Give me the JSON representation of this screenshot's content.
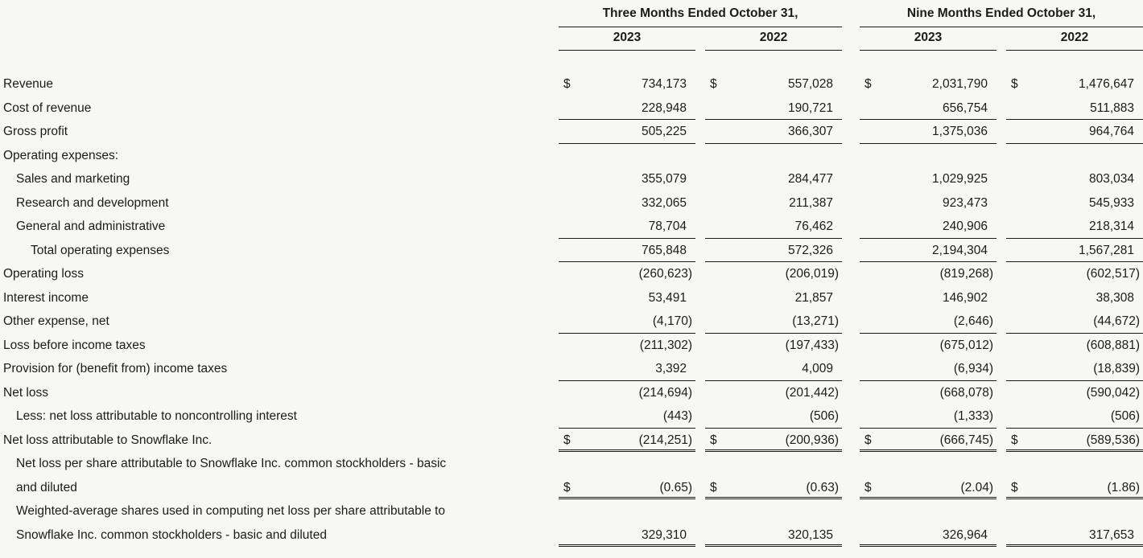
{
  "page": {
    "background_color": "#f7f7f4",
    "text_color": "#1b1b19"
  },
  "table": {
    "currency_symbol": "$",
    "col_groups": [
      {
        "label": "Three Months Ended October 31,",
        "years": [
          "2023",
          "2022"
        ]
      },
      {
        "label": "Nine Months Ended October 31,",
        "years": [
          "2023",
          "2022"
        ]
      }
    ],
    "rows": [
      {
        "label": "Revenue",
        "indent": 0,
        "dollar": true,
        "border": "none",
        "values": [
          "734,173",
          "557,028",
          "2,031,790",
          "1,476,647"
        ]
      },
      {
        "label": "Cost of revenue",
        "indent": 0,
        "border": "single",
        "values": [
          "228,948",
          "190,721",
          "656,754",
          "511,883"
        ]
      },
      {
        "label": "Gross profit",
        "indent": 0,
        "border": "single",
        "values": [
          "505,225",
          "366,307",
          "1,375,036",
          "964,764"
        ]
      },
      {
        "label": "Operating expenses:",
        "indent": 0,
        "border": "none"
      },
      {
        "label": "Sales and marketing",
        "indent": 1,
        "border": "none",
        "values": [
          "355,079",
          "284,477",
          "1,029,925",
          "803,034"
        ]
      },
      {
        "label": "Research and development",
        "indent": 1,
        "border": "none",
        "values": [
          "332,065",
          "211,387",
          "923,473",
          "545,933"
        ]
      },
      {
        "label": "General and administrative",
        "indent": 1,
        "border": "single",
        "values": [
          "78,704",
          "76,462",
          "240,906",
          "218,314"
        ]
      },
      {
        "label": "Total operating expenses",
        "indent": 2,
        "border": "single",
        "values": [
          "765,848",
          "572,326",
          "2,194,304",
          "1,567,281"
        ]
      },
      {
        "label": "Operating loss",
        "indent": 0,
        "border": "none",
        "values": [
          "(260,623)",
          "(206,019)",
          "(819,268)",
          "(602,517)"
        ]
      },
      {
        "label": "Interest income",
        "indent": 0,
        "border": "none",
        "values": [
          "53,491",
          "21,857",
          "146,902",
          "38,308"
        ]
      },
      {
        "label": "Other expense, net",
        "indent": 0,
        "border": "single",
        "values": [
          "(4,170)",
          "(13,271)",
          "(2,646)",
          "(44,672)"
        ]
      },
      {
        "label": "Loss before income taxes",
        "indent": 0,
        "border": "none",
        "values": [
          "(211,302)",
          "(197,433)",
          "(675,012)",
          "(608,881)"
        ]
      },
      {
        "label": "Provision for (benefit from) income taxes",
        "indent": 0,
        "border": "single",
        "values": [
          "3,392",
          "4,009",
          "(6,934)",
          "(18,839)"
        ]
      },
      {
        "label": "Net loss",
        "indent": 0,
        "border": "none",
        "values": [
          "(214,694)",
          "(201,442)",
          "(668,078)",
          "(590,042)"
        ]
      },
      {
        "label": "Less: net loss attributable to noncontrolling interest",
        "indent": 1,
        "border": "single",
        "values": [
          "(443)",
          "(506)",
          "(1,333)",
          "(506)"
        ]
      },
      {
        "label": "Net loss attributable to Snowflake Inc.",
        "indent": 0,
        "dollar": true,
        "border": "double",
        "values": [
          "(214,251)",
          "(200,936)",
          "(666,745)",
          "(589,536)"
        ]
      },
      {
        "label_lines": [
          "Net loss per share attributable to Snowflake Inc. common stockholders - basic",
          "and diluted"
        ],
        "indent": 1,
        "dollar": true,
        "border": "double",
        "values": [
          "(0.65)",
          "(0.63)",
          "(2.04)",
          "(1.86)"
        ]
      },
      {
        "label_lines": [
          "Weighted-average shares used in computing net loss per share attributable to",
          "Snowflake Inc. common stockholders - basic and diluted"
        ],
        "indent": 1,
        "border": "double",
        "values": [
          "329,310",
          "320,135",
          "326,964",
          "317,653"
        ]
      }
    ]
  }
}
